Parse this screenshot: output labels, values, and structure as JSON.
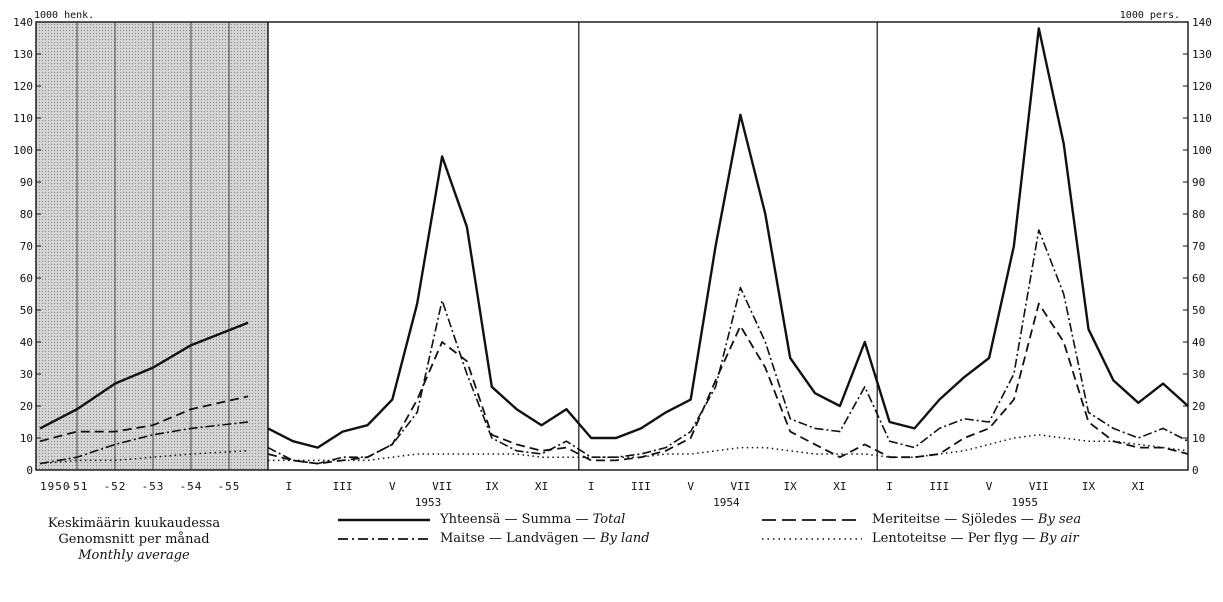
{
  "chart_data": [
    {
      "type": "line",
      "panel": "average",
      "title": "",
      "categories": [
        "1950",
        "-51",
        "-52",
        "-53",
        "-54",
        "-55"
      ],
      "series": [
        {
          "key": "total",
          "values": [
            13,
            19,
            27,
            32,
            39,
            46
          ]
        },
        {
          "key": "sea",
          "values": [
            9,
            12,
            12,
            14,
            19,
            23
          ]
        },
        {
          "key": "land",
          "values": [
            2,
            4,
            8,
            11,
            13,
            15
          ]
        },
        {
          "key": "air",
          "values": [
            2,
            3,
            3,
            4,
            5,
            6
          ]
        }
      ],
      "ylim": [
        0,
        140
      ],
      "grid": false,
      "note": [
        "Keskimäärin kuukaudessa",
        "Genomsnitt per månad",
        "Monthly average"
      ]
    },
    {
      "type": "line",
      "panel": "monthly",
      "title": "",
      "x_month_labels": [
        "I",
        "III",
        "V",
        "VII",
        "IX",
        "XI"
      ],
      "years": [
        "1953",
        "1954",
        "1955"
      ],
      "series": [
        {
          "key": "total",
          "values": [
            13,
            9,
            7,
            12,
            14,
            22,
            52,
            98,
            76,
            26,
            19,
            14,
            19,
            10,
            10,
            13,
            18,
            22,
            70,
            111,
            80,
            35,
            24,
            20,
            40,
            15,
            13,
            22,
            29,
            35,
            70,
            138,
            102,
            44,
            28,
            21,
            27,
            20
          ]
        },
        {
          "key": "sea",
          "values": [
            5,
            3,
            2,
            3,
            4,
            8,
            22,
            40,
            34,
            11,
            8,
            6,
            7,
            3,
            3,
            4,
            6,
            10,
            28,
            45,
            32,
            12,
            8,
            4,
            8,
            4,
            4,
            5,
            10,
            13,
            22,
            52,
            40,
            15,
            9,
            7,
            7,
            5
          ]
        },
        {
          "key": "land",
          "values": [
            7,
            3,
            2,
            4,
            4,
            8,
            18,
            53,
            30,
            10,
            6,
            5,
            9,
            4,
            4,
            5,
            7,
            12,
            26,
            57,
            40,
            16,
            13,
            12,
            26,
            9,
            7,
            13,
            16,
            15,
            30,
            75,
            55,
            18,
            13,
            10,
            13,
            9
          ]
        },
        {
          "key": "air",
          "values": [
            3,
            3,
            3,
            3,
            3,
            4,
            5,
            5,
            5,
            5,
            5,
            4,
            4,
            4,
            4,
            4,
            5,
            5,
            6,
            7,
            7,
            6,
            5,
            5,
            5,
            4,
            4,
            5,
            6,
            8,
            10,
            11,
            10,
            9,
            9,
            8,
            7,
            6
          ]
        }
      ],
      "y_ticks": [
        0,
        10,
        20,
        30,
        40,
        50,
        60,
        70,
        80,
        90,
        100,
        110,
        120,
        130,
        140
      ],
      "ylim": [
        0,
        140
      ],
      "y_unit_left": "1000 henk.",
      "y_unit_right": "1000 pers.",
      "grid": false
    }
  ],
  "legend": {
    "total": {
      "fi": "Yhteensä",
      "sv": "Summa",
      "en": "Total",
      "sep": "—"
    },
    "sea": {
      "fi": "Meriteitse",
      "sv": "Sjöledes",
      "en": "By sea",
      "sep": "—"
    },
    "land": {
      "fi": "Maitse",
      "sv": "Landvägen",
      "en": "By land",
      "sep": "—"
    },
    "air": {
      "fi": "Lentoteitse",
      "sv": "Per flyg",
      "en": "By air",
      "sep": "—"
    }
  },
  "colors": {
    "ink": "#111111",
    "shade": "#c8c8c8"
  }
}
